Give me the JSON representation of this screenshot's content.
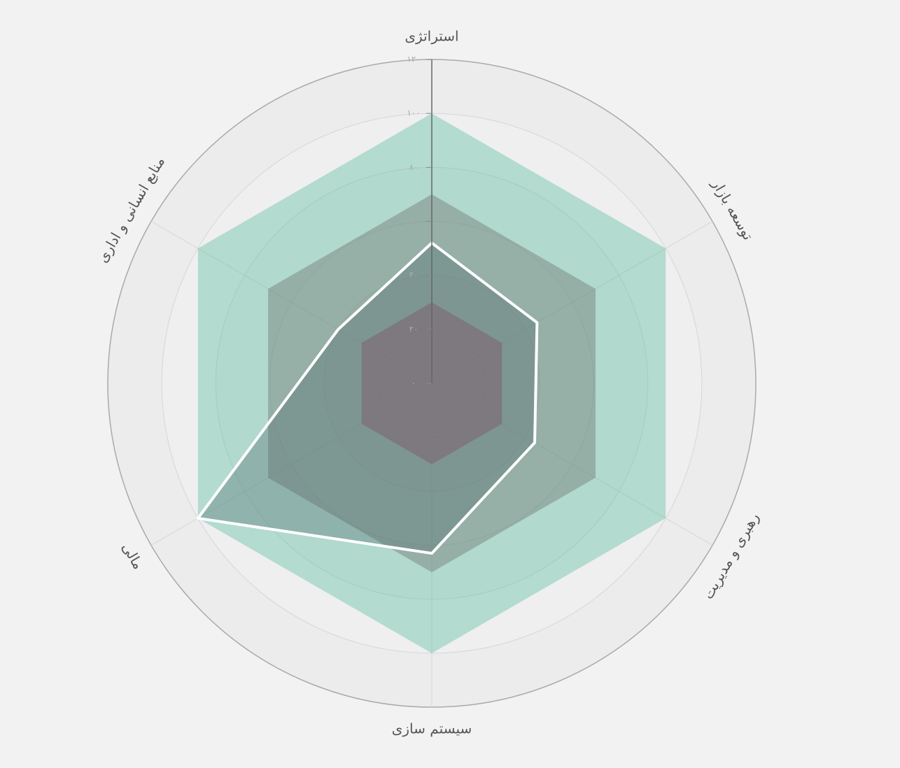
{
  "chart_data": {
    "type": "radar",
    "categories": [
      "استراتژی",
      "توسعه بازار",
      "رهبری و مدیریت",
      "سیستم سازی",
      "مالی",
      "منابع انسانی و اداری"
    ],
    "series": [
      {
        "color": "rgba(95,190,165,0.42)",
        "values": [
          100,
          100,
          100,
          100,
          100,
          100
        ]
      },
      {
        "color": "rgba(115,122,118,0.45)",
        "values": [
          70,
          70,
          70,
          70,
          70,
          70
        ]
      },
      {
        "color": "rgba(150,75,100,0.45)",
        "values": [
          30,
          30,
          30,
          30,
          30,
          30
        ]
      },
      {
        "color": "rgba(80,105,110,0.35)",
        "stroke": "#ffffff",
        "values": [
          52,
          45,
          44,
          63,
          100,
          40
        ]
      }
    ],
    "ylim": [
      0,
      120
    ],
    "yticks": [
      {
        "value": 0,
        "label": "۰"
      },
      {
        "value": 20,
        "label": "۲۰"
      },
      {
        "value": 40,
        "label": "۴۰"
      },
      {
        "value": 60,
        "label": "۶۰"
      },
      {
        "value": 80,
        "label": "۸۰"
      },
      {
        "value": 100,
        "label": "۱۰۰"
      },
      {
        "value": 120,
        "label": "۱۲۰"
      }
    ],
    "grid": true
  }
}
